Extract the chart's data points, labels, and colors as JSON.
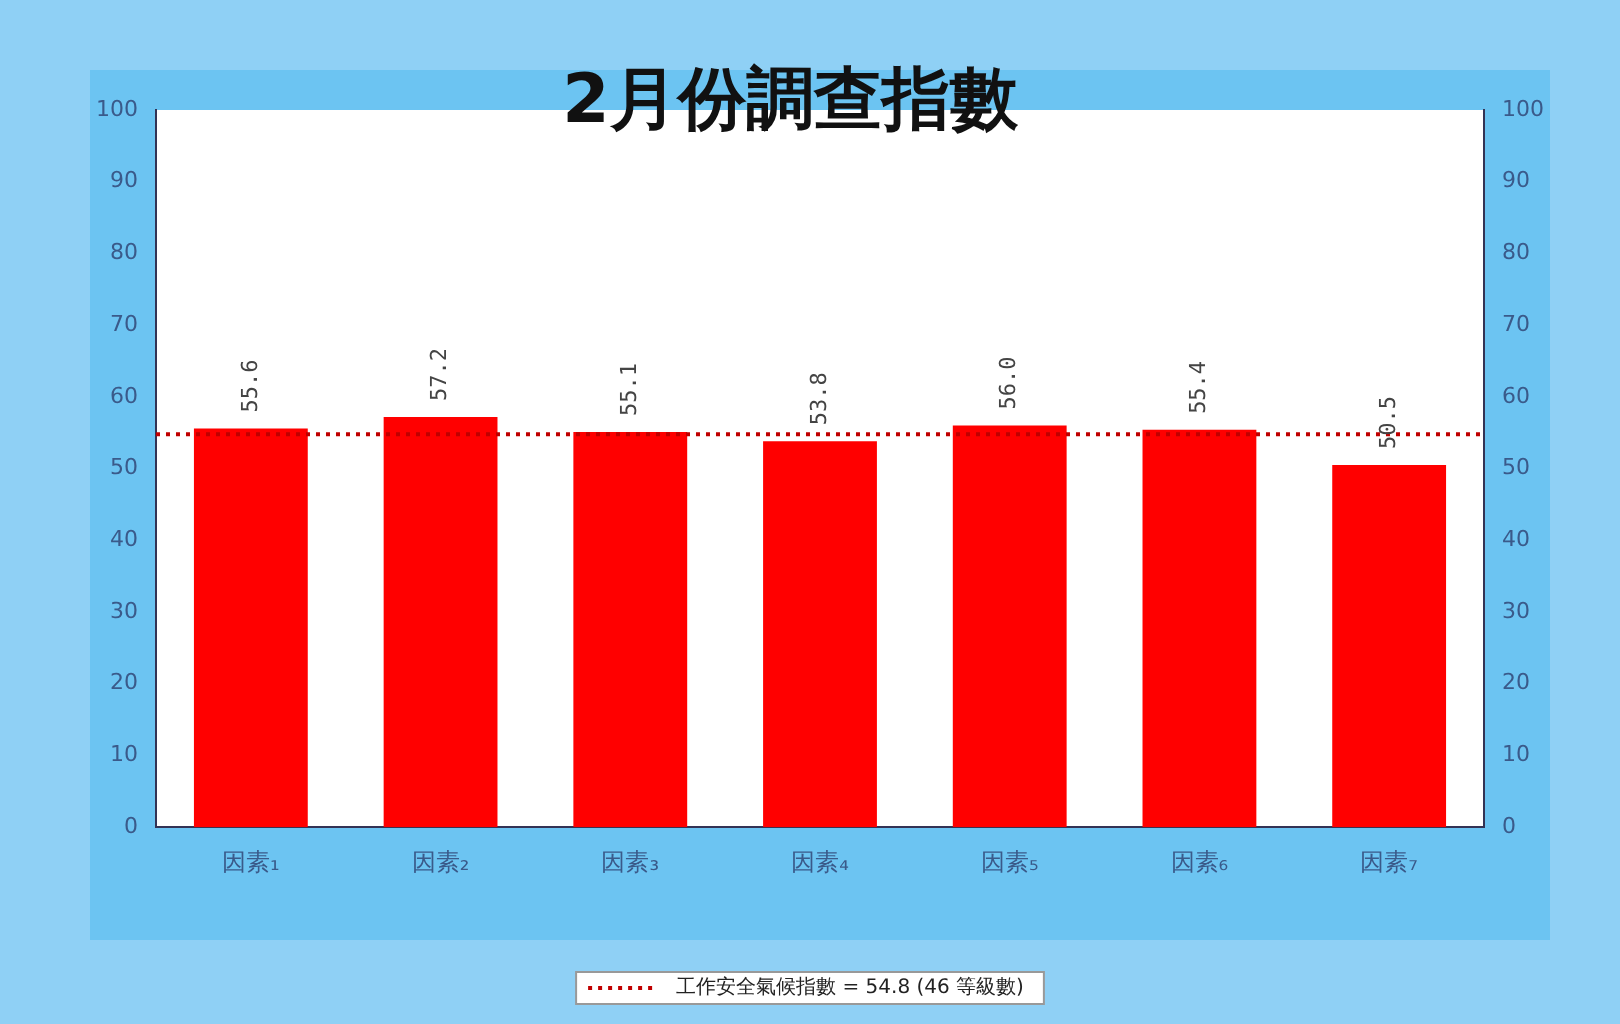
{
  "chart_data": {
    "type": "bar",
    "title": "2月份調查指數",
    "categories": [
      "因素₁",
      "因素₂",
      "因素₃",
      "因素₄",
      "因素₅",
      "因素₆",
      "因素₇"
    ],
    "values": [
      55.6,
      57.2,
      55.1,
      53.8,
      56.0,
      55.4,
      50.5
    ],
    "color": "#ff0000",
    "value_labels": [
      "55.6",
      "57.2",
      "55.1",
      "53.8",
      "56.0",
      "55.4",
      "50.5"
    ],
    "ylim": [
      0,
      100
    ],
    "yticks": [
      0,
      10,
      20,
      30,
      40,
      50,
      60,
      70,
      80,
      90,
      100
    ],
    "y2lim": [
      0,
      100
    ],
    "y2ticks": [
      0,
      10,
      20,
      30,
      40,
      50,
      60,
      70,
      80,
      90,
      100
    ],
    "ref_lines": [
      {
        "axis": "y",
        "value": 54.8,
        "label": "工作安全氣候指數 = 54.8 (46 等級數)",
        "color": "#c00000",
        "line_style": "dotted"
      }
    ],
    "grid": false,
    "legend": "bottom"
  }
}
